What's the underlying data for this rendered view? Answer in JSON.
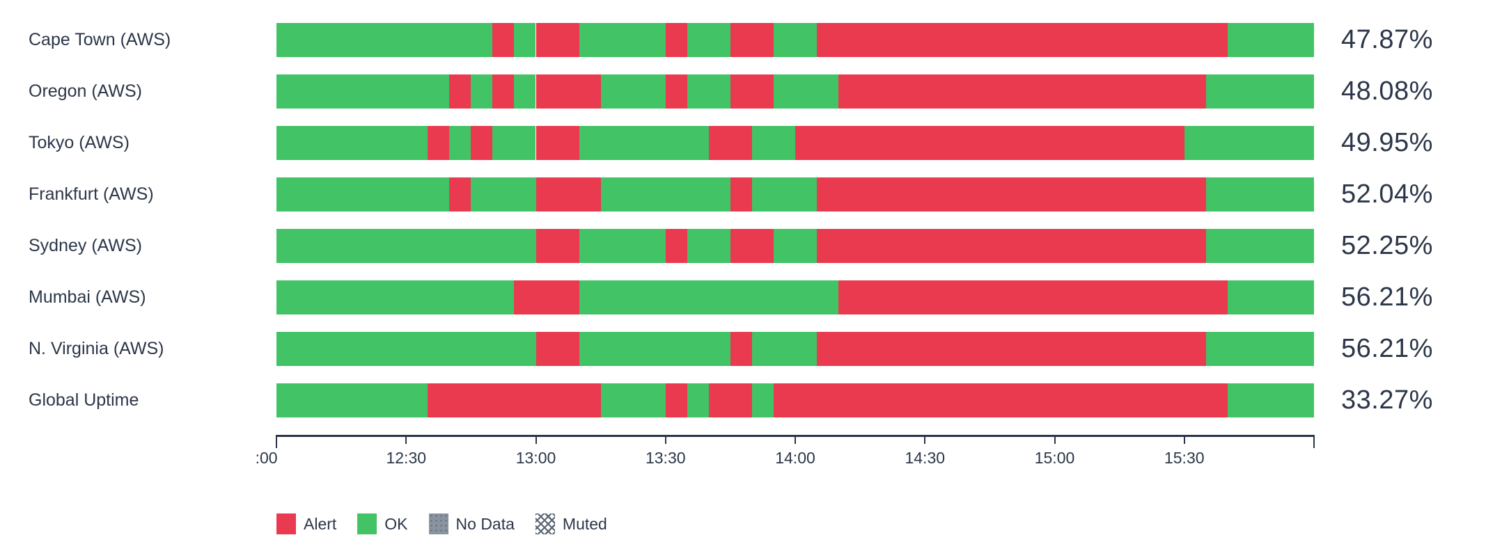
{
  "colors": {
    "alert": "#E93A4F",
    "ok": "#41C366",
    "no_data": "#8A93A0",
    "text": "#2B3648",
    "axis": "#2B3648"
  },
  "chart_data": {
    "type": "status-timeline",
    "x_start": "12:00",
    "x_end": "16:00",
    "slot_minutes": 5,
    "slots_total": 48,
    "grid": false,
    "legend_position": "bottom-left",
    "axis_ticks": [
      {
        "pos": 0,
        "label": ":00"
      },
      {
        "pos": 0.125,
        "label": "12:30"
      },
      {
        "pos": 0.25,
        "label": "13:00"
      },
      {
        "pos": 0.375,
        "label": "13:30"
      },
      {
        "pos": 0.5,
        "label": "14:00"
      },
      {
        "pos": 0.625,
        "label": "14:30"
      },
      {
        "pos": 0.75,
        "label": "15:00"
      },
      {
        "pos": 0.875,
        "label": "15:30"
      },
      {
        "pos": 1,
        "label": ""
      }
    ],
    "rows": [
      {
        "label": "Cape Town (AWS)",
        "uptime": "47.87%",
        "segments": [
          [
            "ok",
            0,
            10
          ],
          [
            "alert",
            10,
            11
          ],
          [
            "ok",
            11,
            12
          ],
          [
            "alert",
            12,
            14
          ],
          [
            "ok",
            14,
            18
          ],
          [
            "alert",
            18,
            19
          ],
          [
            "ok",
            19,
            21
          ],
          [
            "alert",
            21,
            23
          ],
          [
            "ok",
            23,
            25
          ],
          [
            "alert",
            25,
            44
          ],
          [
            "ok",
            44,
            48
          ]
        ]
      },
      {
        "label": "Oregon (AWS)",
        "uptime": "48.08%",
        "segments": [
          [
            "ok",
            0,
            8
          ],
          [
            "alert",
            8,
            9
          ],
          [
            "ok",
            9,
            10
          ],
          [
            "alert",
            10,
            11
          ],
          [
            "ok",
            11,
            12
          ],
          [
            "alert",
            12,
            15
          ],
          [
            "ok",
            15,
            18
          ],
          [
            "alert",
            18,
            19
          ],
          [
            "ok",
            19,
            21
          ],
          [
            "alert",
            21,
            23
          ],
          [
            "ok",
            23,
            26
          ],
          [
            "alert",
            26,
            43
          ],
          [
            "ok",
            43,
            48
          ]
        ]
      },
      {
        "label": "Tokyo (AWS)",
        "uptime": "49.95%",
        "segments": [
          [
            "ok",
            0,
            7
          ],
          [
            "alert",
            7,
            8
          ],
          [
            "ok",
            8,
            9
          ],
          [
            "alert",
            9,
            10
          ],
          [
            "ok",
            10,
            12
          ],
          [
            "alert",
            12,
            14
          ],
          [
            "ok",
            14,
            20
          ],
          [
            "alert",
            20,
            22
          ],
          [
            "ok",
            22,
            24
          ],
          [
            "alert",
            24,
            42
          ],
          [
            "ok",
            42,
            48
          ]
        ]
      },
      {
        "label": "Frankfurt (AWS)",
        "uptime": "52.04%",
        "segments": [
          [
            "ok",
            0,
            8
          ],
          [
            "alert",
            8,
            9
          ],
          [
            "ok",
            9,
            12
          ],
          [
            "alert",
            12,
            15
          ],
          [
            "ok",
            15,
            21
          ],
          [
            "alert",
            21,
            22
          ],
          [
            "ok",
            22,
            25
          ],
          [
            "alert",
            25,
            43
          ],
          [
            "ok",
            43,
            48
          ]
        ]
      },
      {
        "label": "Sydney (AWS)",
        "uptime": "52.25%",
        "segments": [
          [
            "ok",
            0,
            12
          ],
          [
            "alert",
            12,
            14
          ],
          [
            "ok",
            14,
            18
          ],
          [
            "alert",
            18,
            19
          ],
          [
            "ok",
            19,
            21
          ],
          [
            "alert",
            21,
            23
          ],
          [
            "ok",
            23,
            25
          ],
          [
            "alert",
            25,
            43
          ],
          [
            "ok",
            43,
            48
          ]
        ]
      },
      {
        "label": "Mumbai (AWS)",
        "uptime": "56.21%",
        "segments": [
          [
            "ok",
            0,
            11
          ],
          [
            "alert",
            11,
            14
          ],
          [
            "ok",
            14,
            26
          ],
          [
            "alert",
            26,
            44
          ],
          [
            "ok",
            44,
            48
          ]
        ]
      },
      {
        "label": "N. Virginia (AWS)",
        "uptime": "56.21%",
        "segments": [
          [
            "ok",
            0,
            12
          ],
          [
            "alert",
            12,
            14
          ],
          [
            "ok",
            14,
            21
          ],
          [
            "alert",
            21,
            22
          ],
          [
            "ok",
            22,
            25
          ],
          [
            "alert",
            25,
            43
          ],
          [
            "ok",
            43,
            48
          ]
        ]
      },
      {
        "label": "Global Uptime",
        "uptime": "33.27%",
        "segments": [
          [
            "ok",
            0,
            7
          ],
          [
            "alert",
            7,
            15
          ],
          [
            "ok",
            15,
            18
          ],
          [
            "alert",
            18,
            19
          ],
          [
            "ok",
            19,
            20
          ],
          [
            "alert",
            20,
            22
          ],
          [
            "ok",
            22,
            23
          ],
          [
            "alert",
            23,
            44
          ],
          [
            "ok",
            44,
            48
          ]
        ]
      }
    ],
    "legend": [
      {
        "label": "Alert",
        "swatch": "alert"
      },
      {
        "label": "OK",
        "swatch": "ok"
      },
      {
        "label": "No Data",
        "swatch": "no-data"
      },
      {
        "label": "Muted",
        "swatch": "muted"
      }
    ]
  }
}
